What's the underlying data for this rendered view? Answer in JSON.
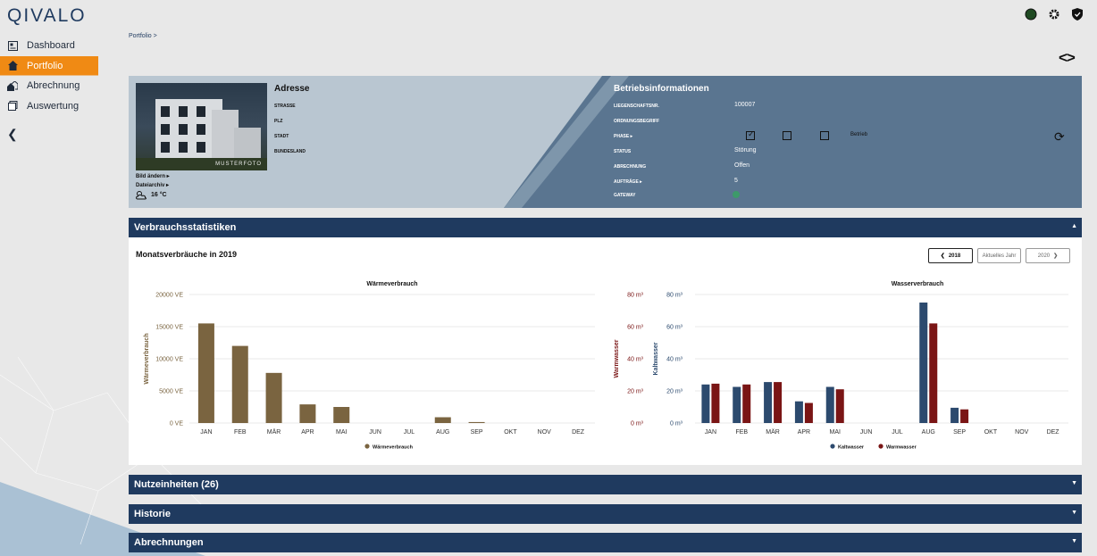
{
  "app": {
    "logo": "QIVALO"
  },
  "sidebar": {
    "items": [
      {
        "label": "Dashboard"
      },
      {
        "label": "Portfolio"
      },
      {
        "label": "Abrechnung"
      },
      {
        "label": "Auswertung"
      }
    ]
  },
  "breadcrumb": "Portfolio  >",
  "photo": {
    "watermark": "MUSTERFOTO",
    "change_label": "Bild ändern ▸",
    "archive_label": "Dateiarchiv ▸"
  },
  "weather": {
    "temp": "16  °C"
  },
  "address": {
    "title": "Adresse",
    "labels": [
      "STRASSE",
      "PLZ",
      "STADT",
      "BUNDESLAND"
    ]
  },
  "operations": {
    "title": "Betriebsinformationen",
    "rows": [
      {
        "label": "LIEGENSCHAFTSNR.",
        "value": "100007"
      },
      {
        "label": "ORDNUNGSBEGRIFF",
        "value": ""
      },
      {
        "label": "PHASE ▸",
        "value": ""
      },
      {
        "label": "STATUS",
        "value": "Störung"
      },
      {
        "label": "ABRECHNUNG",
        "value": "Offen"
      },
      {
        "label": "AUFTRÄGE ▸",
        "value": "5"
      },
      {
        "label": "GATEWAY",
        "value": ""
      }
    ],
    "phase_option": "Betrieb",
    "gateway_color": "#3d9a6a"
  },
  "sections": {
    "stats": "Verbrauchsstatistiken",
    "units": "Nutzeinheiten (26)",
    "history": "Historie",
    "bills": "Abrechnungen"
  },
  "stats": {
    "title": "Monatsverbräuche in 2019",
    "prev_year": "2018",
    "current_year": "Aktuelles Jahr",
    "next_year": "2020"
  },
  "colors": {
    "accent": "#f08a14",
    "navy": "#1f3a5f",
    "heat": "#7a6440",
    "cold": "#2c4a6e",
    "warm": "#7a1515"
  },
  "chart_data": [
    {
      "type": "bar",
      "title": "Wärmeverbrauch",
      "ylabel": "Wärmeverbrauch",
      "categories": [
        "JAN",
        "FEB",
        "MÄR",
        "APR",
        "MAI",
        "JUN",
        "JUL",
        "AUG",
        "SEP",
        "OKT",
        "NOV",
        "DEZ"
      ],
      "series": [
        {
          "name": "Wärmeverbrauch",
          "values": [
            15500,
            12000,
            7800,
            2900,
            2500,
            0,
            0,
            900,
            150,
            0,
            0,
            0
          ]
        }
      ],
      "ylim": [
        0,
        20000
      ],
      "yticks": [
        "0 VE",
        "5000 VE",
        "10000 VE",
        "15000 VE",
        "20000 VE"
      ],
      "legend": "bottom"
    },
    {
      "type": "bar",
      "title": "Wasserverbrauch",
      "ylabel_left": "Warmwasser",
      "ylabel_right": "Kaltwasser",
      "categories": [
        "JAN",
        "FEB",
        "MÄR",
        "APR",
        "MAI",
        "JUN",
        "JUL",
        "AUG",
        "SEP",
        "OKT",
        "NOV",
        "DEZ"
      ],
      "series": [
        {
          "name": "Kaltwasser",
          "values": [
            24,
            22.5,
            25.5,
            13.5,
            22.5,
            0,
            0,
            75,
            9.5,
            0,
            0,
            0
          ]
        },
        {
          "name": "Warmwasser",
          "values": [
            24.5,
            24,
            25.5,
            12.5,
            21,
            0,
            0,
            62,
            8.5,
            0,
            0,
            0
          ]
        }
      ],
      "ylim": [
        0,
        80
      ],
      "yticks": [
        "0 m³",
        "20 m³",
        "40 m³",
        "60 m³",
        "80 m³"
      ],
      "legend": "bottom"
    }
  ]
}
